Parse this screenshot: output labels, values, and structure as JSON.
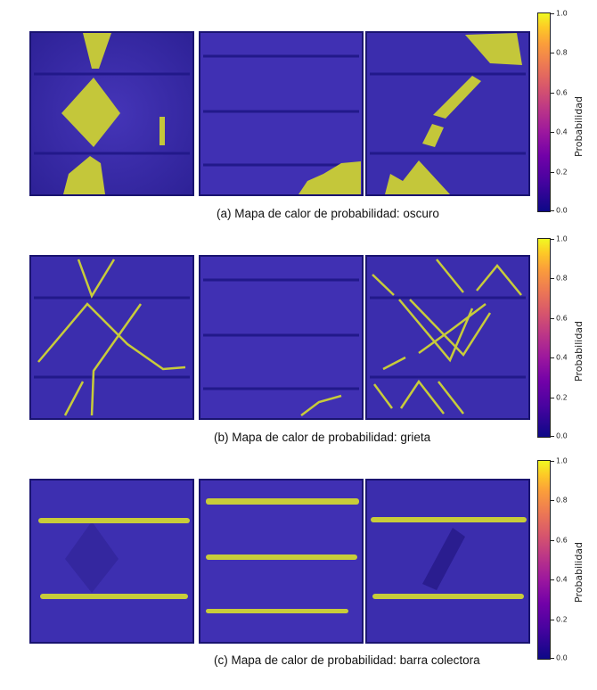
{
  "colors": {
    "cell_base": "#3d2fb0",
    "cell_dark": "#2a1d8f",
    "cell_border": "#1a1470",
    "busbar_line": "#2f248c",
    "highlight": "#c8cc3a"
  },
  "colorbar": {
    "label": "Probabilidad",
    "ticks": [
      "0.0",
      "0.2",
      "0.4",
      "0.6",
      "0.8",
      "1.0"
    ]
  },
  "rows": [
    {
      "id": "oscuro",
      "caption": "(a) Mapa de calor de probabilidad: oscuro"
    },
    {
      "id": "grieta",
      "caption": "(b)  Mapa de calor de probabilidad: grieta"
    },
    {
      "id": "barra",
      "caption": "(c) Mapa de calor de probabilidad: barra colectora"
    }
  ]
}
